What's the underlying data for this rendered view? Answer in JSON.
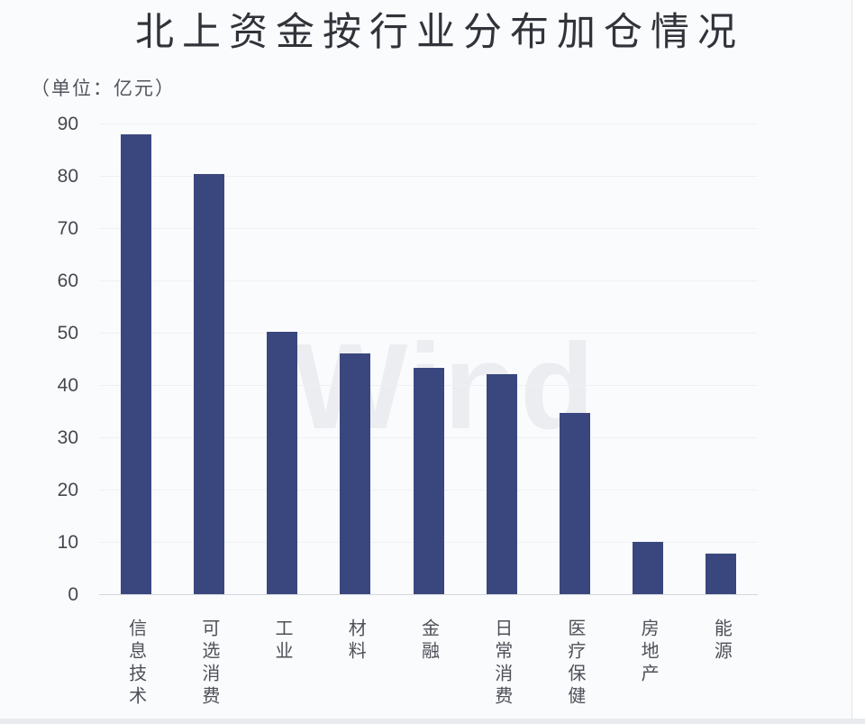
{
  "page": {
    "card_background": "#fafbfd",
    "outer_background": "#ffffff",
    "bottom_strip_color": "#e9eaee"
  },
  "chart_data": {
    "type": "bar",
    "title": "北上资金按行业分布加仓情况",
    "unit_label": "（单位：亿元）",
    "unit": "亿元",
    "categories": [
      "信息技术",
      "可选消费",
      "工业",
      "材料",
      "金融",
      "日常消费",
      "医疗保健",
      "房地产",
      "能源"
    ],
    "values": [
      88.1,
      80.5,
      50.3,
      46.2,
      43.4,
      42.2,
      34.8,
      10.2,
      8.0
    ],
    "xlabel": "",
    "ylabel": "",
    "ylim": [
      0,
      90
    ],
    "ytick_step": 10,
    "grid": true,
    "legend": false,
    "bar_color": "#3a477e",
    "watermark_text": "Wind",
    "watermark_color": "#ecedf1"
  }
}
